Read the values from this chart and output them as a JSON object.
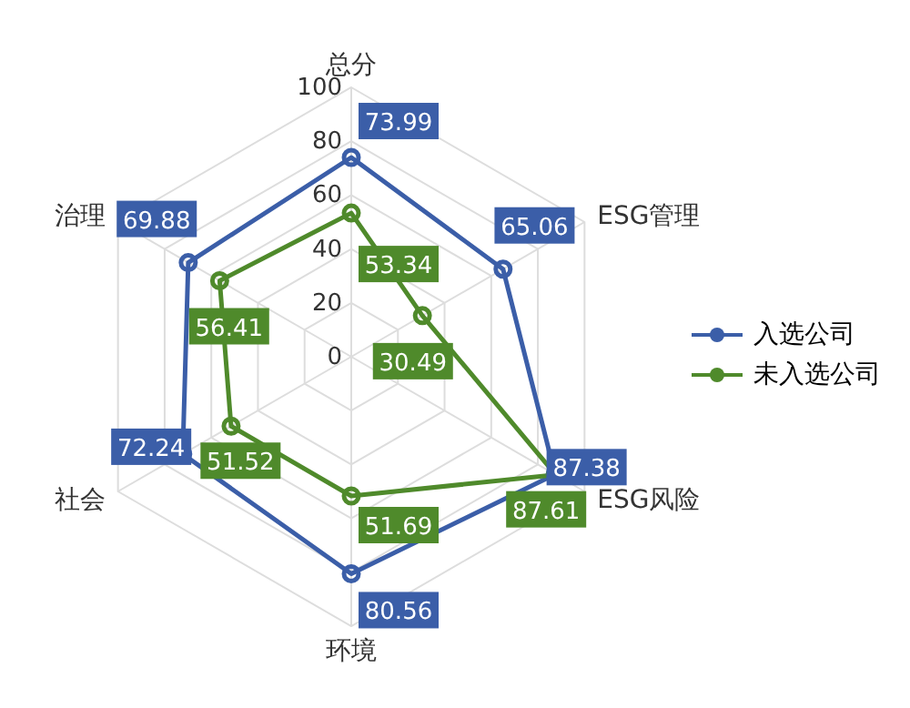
{
  "chart_data": {
    "type": "radar",
    "categories": [
      "总分",
      "ESG管理",
      "ESG风险",
      "环境",
      "社会",
      "治理"
    ],
    "series": [
      {
        "name": "入选公司",
        "color": "#3b5ea8",
        "values": [
          73.99,
          65.06,
          87.38,
          80.56,
          72.24,
          69.88
        ]
      },
      {
        "name": "未入选公司",
        "color": "#4f8a2b",
        "values": [
          53.34,
          30.49,
          87.61,
          51.69,
          51.52,
          56.41
        ]
      }
    ],
    "ylim": [
      0,
      100
    ],
    "yticks": [
      0,
      20,
      40,
      60,
      80,
      100
    ],
    "grid": true,
    "legend": "right",
    "marker": "circle",
    "data_labels": true
  }
}
